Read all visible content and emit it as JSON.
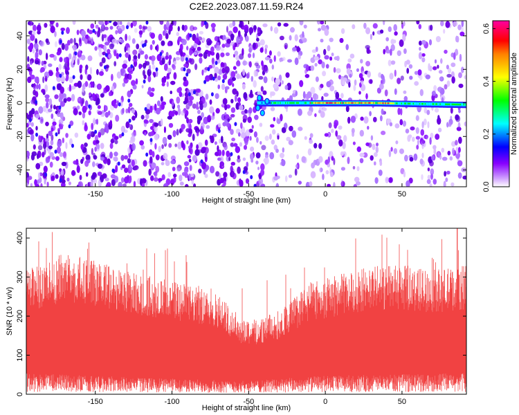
{
  "chart_data": [
    {
      "type": "heatmap",
      "title": "C2E2.2023.087.11.59.R24",
      "xlabel": "Height of straight line (km)",
      "ylabel": "Frequency (Hz)",
      "xlim": [
        -195,
        92
      ],
      "ylim": [
        -50,
        49
      ],
      "xticks": [
        -150,
        -100,
        -50,
        0,
        50
      ],
      "yticks": [
        -40,
        -20,
        0,
        20,
        40
      ],
      "colorbar": {
        "label": "Normalized spectral amplitude",
        "range": [
          0,
          0.63
        ],
        "ticks": [
          "0.0",
          "0.2",
          "0.4",
          "0.6"
        ],
        "colors": [
          "#ffffff",
          "#8800ff",
          "#0000ff",
          "#00ffff",
          "#00ff00",
          "#ffff00",
          "#ff0000",
          "#ff00ff"
        ]
      },
      "signal_band": {
        "frequency_hz": 0,
        "x_start_km": -44,
        "x_end_km": 92,
        "peak_amplitude": 0.6
      },
      "noise_background": "violet speckle, sparser for x > -40 km"
    },
    {
      "type": "bar",
      "title": "",
      "xlabel": "Height of straight line (km)",
      "ylabel": "SNR (10 * v/v)",
      "xlim": [
        -195,
        92
      ],
      "ylim": [
        0,
        425
      ],
      "xticks": [
        -150,
        -100,
        -50,
        0,
        50
      ],
      "yticks": [
        0,
        100,
        200,
        300,
        400
      ],
      "color": "#f03030",
      "envelope_upper": [
        {
          "x": -195,
          "y": 290
        },
        {
          "x": -170,
          "y": 330
        },
        {
          "x": -150,
          "y": 310
        },
        {
          "x": -120,
          "y": 280
        },
        {
          "x": -90,
          "y": 255
        },
        {
          "x": -70,
          "y": 235
        },
        {
          "x": -55,
          "y": 180
        },
        {
          "x": -45,
          "y": 175
        },
        {
          "x": -30,
          "y": 195
        },
        {
          "x": -10,
          "y": 260
        },
        {
          "x": 10,
          "y": 280
        },
        {
          "x": 30,
          "y": 300
        },
        {
          "x": 50,
          "y": 300
        },
        {
          "x": 70,
          "y": 290
        },
        {
          "x": 92,
          "y": 300
        }
      ],
      "envelope_lower": [
        {
          "x": -195,
          "y": 40
        },
        {
          "x": -150,
          "y": 35
        },
        {
          "x": -100,
          "y": 30
        },
        {
          "x": -55,
          "y": 25
        },
        {
          "x": 0,
          "y": 35
        },
        {
          "x": 50,
          "y": 38
        },
        {
          "x": 92,
          "y": 40
        }
      ],
      "peak": {
        "x": 86,
        "y": 425
      }
    }
  ]
}
